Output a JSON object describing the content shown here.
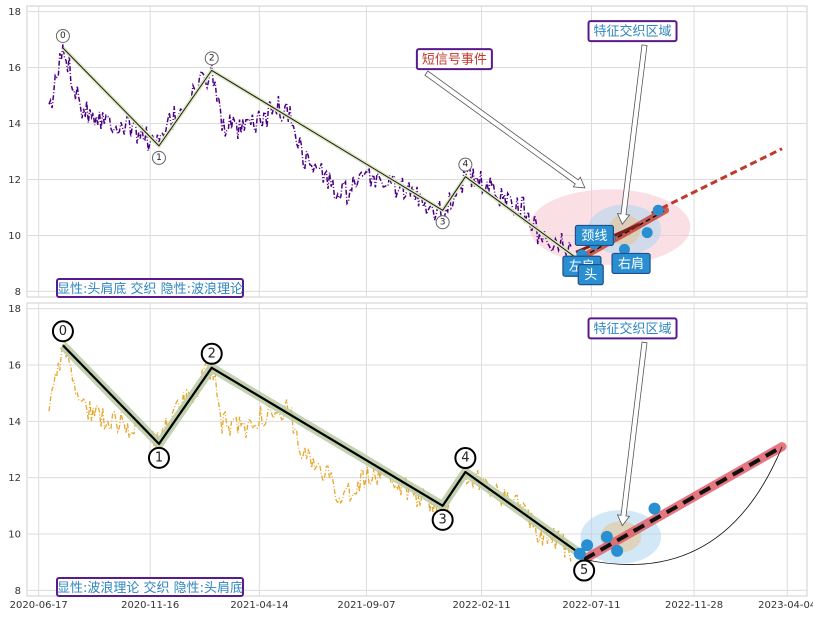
{
  "chart_data": [
    {
      "type": "line",
      "x_ticks": [
        "2020-06-17",
        "2020-11-16",
        "2021-04-14",
        "2021-09-07",
        "2022-02-11",
        "2022-07-11",
        "2022-11-28",
        "2023-04-04"
      ],
      "y_ticks": [
        "8",
        "10",
        "12",
        "14",
        "16",
        "18"
      ],
      "ylim": [
        7.8,
        18.2
      ],
      "xlim": [
        "2020-06-01",
        "2023-05-01"
      ],
      "grid": true,
      "colors": {
        "price": "#4b0082",
        "wave": "#1a1a1a",
        "wave_band": "#dce8c0",
        "neck": "#c33",
        "trend": "#c0392b",
        "region_outer": "#f5c6cf",
        "region_inner": "#aed6f1",
        "marker": "#2a8fd0"
      },
      "price_anchors": [
        [
          "2020-07-01",
          14.3
        ],
        [
          "2020-07-20",
          16.7
        ],
        [
          "2020-08-15",
          14.6
        ],
        [
          "2020-09-10",
          14.2
        ],
        [
          "2020-10-05",
          14.0
        ],
        [
          "2020-10-25",
          13.8
        ],
        [
          "2020-11-28",
          13.2
        ],
        [
          "2020-12-10",
          13.9
        ],
        [
          "2021-01-05",
          14.8
        ],
        [
          "2021-02-08",
          15.9
        ],
        [
          "2021-02-22",
          14.0
        ],
        [
          "2021-03-20",
          13.7
        ],
        [
          "2021-04-20",
          14.2
        ],
        [
          "2021-05-10",
          14.6
        ],
        [
          "2021-05-28",
          14.2
        ],
        [
          "2021-06-15",
          12.7
        ],
        [
          "2021-07-10",
          12.2
        ],
        [
          "2021-08-01",
          11.4
        ],
        [
          "2021-08-20",
          11.7
        ],
        [
          "2021-09-15",
          12.1
        ],
        [
          "2021-10-15",
          11.8
        ],
        [
          "2021-11-15",
          11.4
        ],
        [
          "2021-12-20",
          10.8
        ],
        [
          "2022-01-05",
          11.5
        ],
        [
          "2022-01-20",
          12.1
        ],
        [
          "2022-02-10",
          11.9
        ],
        [
          "2022-03-10",
          11.4
        ],
        [
          "2022-04-05",
          11.1
        ],
        [
          "2022-05-01",
          10.0
        ],
        [
          "2022-05-25",
          9.8
        ],
        [
          "2022-06-15",
          9.4
        ]
      ],
      "wave_points": [
        {
          "date": "2020-07-20",
          "value": 16.7,
          "label": "0"
        },
        {
          "date": "2020-11-28",
          "value": 13.2,
          "label": "1"
        },
        {
          "date": "2021-02-08",
          "value": 15.9,
          "label": "2"
        },
        {
          "date": "2021-12-20",
          "value": 10.9,
          "label": "3"
        },
        {
          "date": "2022-01-20",
          "value": 12.1,
          "label": "4"
        },
        {
          "date": "2022-06-20",
          "value": 9.2,
          "label": ""
        }
      ],
      "neckline": [
        [
          "2022-06-20",
          9.4
        ],
        [
          "2022-09-15",
          10.4
        ]
      ],
      "trend_line": [
        [
          "2022-06-20",
          9.1
        ],
        [
          "2022-10-20",
          10.9
        ]
      ],
      "projection": [
        [
          "2022-10-01",
          10.8
        ],
        [
          "2023-03-28",
          13.1
        ]
      ],
      "ellipses": [
        {
          "center": [
            "2022-08-05",
            10.3
          ],
          "rx_days": 110,
          "ry": 1.35,
          "color": "#f5c6cf"
        },
        {
          "center": [
            "2022-08-25",
            10.2
          ],
          "rx_days": 50,
          "ry": 0.9,
          "color": "#aed6f1"
        },
        {
          "center": [
            "2022-08-25",
            10.2
          ],
          "rx_days": 22,
          "ry": 0.55,
          "color": "#e8c28e"
        }
      ],
      "markers": [
        [
          "2022-06-28",
          9.3
        ],
        [
          "2022-07-15",
          9.7
        ],
        [
          "2022-08-05",
          9.9
        ],
        [
          "2022-08-25",
          9.5
        ],
        [
          "2022-09-25",
          10.1
        ],
        [
          "2022-10-10",
          10.9
        ]
      ],
      "annotations": [
        {
          "text": "特征交织区域",
          "date": "2022-09-05",
          "value": 17.3,
          "color": "#2e86c1",
          "arrow_to": [
            "2022-08-22",
            10.4
          ]
        },
        {
          "text": "短信号事件",
          "date": "2022-01-05",
          "value": 16.3,
          "color": "#c0392b",
          "arrow_to": [
            "2022-07-02",
            11.7
          ]
        }
      ],
      "labels": [
        {
          "text": "颈线",
          "date": "2022-07-15",
          "value": 10.0
        },
        {
          "text": "左肩",
          "date": "2022-06-28",
          "value": 8.9
        },
        {
          "text": "头",
          "date": "2022-07-10",
          "value": 8.6
        },
        {
          "text": "右肩",
          "date": "2022-09-03",
          "value": 9.0
        }
      ],
      "caption": "显性:头肩底 交织 隐性:波浪理论"
    },
    {
      "type": "line",
      "x_ticks": [
        "2020-06-17",
        "2020-11-16",
        "2021-04-14",
        "2021-09-07",
        "2022-02-11",
        "2022-07-11",
        "2022-11-28",
        "2023-04-04"
      ],
      "y_ticks": [
        "8",
        "10",
        "12",
        "14",
        "16",
        "18"
      ],
      "ylim": [
        7.8,
        18.2
      ],
      "xlim": [
        "2020-06-01",
        "2023-05-01"
      ],
      "grid": true,
      "colors": {
        "price": "#e6a82e",
        "wave": "#000000",
        "wave_band": "#b9caa3",
        "trend": "#e05560",
        "region_outer": "#aed6f1",
        "region_inner": "#e8c28e",
        "marker": "#2a8fd0"
      },
      "wave_points": [
        {
          "date": "2020-07-20",
          "value": 16.7,
          "label": "0"
        },
        {
          "date": "2020-11-28",
          "value": 13.2,
          "label": "1"
        },
        {
          "date": "2021-02-08",
          "value": 15.9,
          "label": "2"
        },
        {
          "date": "2021-12-20",
          "value": 11.0,
          "label": "3"
        },
        {
          "date": "2022-01-20",
          "value": 12.2,
          "label": "4"
        },
        {
          "date": "2022-07-01",
          "value": 9.2,
          "label": "5"
        }
      ],
      "trend_line": [
        [
          "2022-07-01",
          9.1
        ],
        [
          "2023-03-28",
          13.1
        ]
      ],
      "ellipses": [
        {
          "center": [
            "2022-08-20",
            9.9
          ],
          "rx_days": 55,
          "ry": 0.95,
          "color": "#aed6f1"
        },
        {
          "center": [
            "2022-08-20",
            9.9
          ],
          "rx_days": 28,
          "ry": 0.55,
          "color": "#e8c28e"
        }
      ],
      "markers": [
        [
          "2022-06-25",
          9.3
        ],
        [
          "2022-07-05",
          9.6
        ],
        [
          "2022-08-01",
          9.9
        ],
        [
          "2022-08-15",
          9.4
        ],
        [
          "2022-10-05",
          10.9
        ]
      ],
      "annotations": [
        {
          "text": "特征交织区域",
          "date": "2022-09-05",
          "value": 17.3,
          "color": "#2e86c1",
          "arrow_to": [
            "2022-08-22",
            10.3
          ]
        }
      ],
      "caption": "显性:波浪理论 交织 隐性:头肩底"
    }
  ]
}
